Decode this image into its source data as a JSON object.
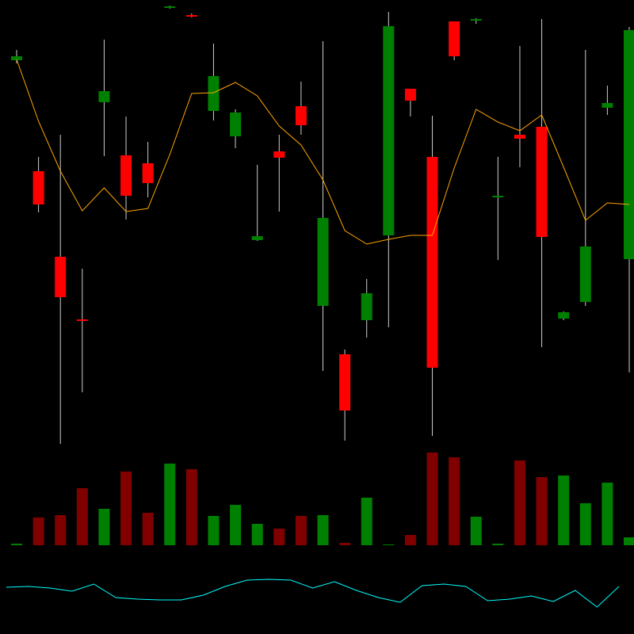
{
  "chart_data": [
    {
      "type": "candlestick",
      "open": [
        484,
        344,
        236,
        157,
        431,
        364,
        354,
        550,
        541,
        420,
        388,
        257,
        369,
        426,
        174,
        113,
        156,
        263,
        448,
        362,
        533,
        534,
        311,
        390,
        400,
        158,
        179,
        424,
        233
      ],
      "close": [
        489,
        302,
        185,
        155,
        445,
        313,
        329,
        552,
        539,
        464,
        418,
        262,
        361,
        402,
        285,
        42,
        190,
        527,
        433,
        96,
        489,
        536,
        313,
        385,
        261,
        166,
        249,
        430,
        522
      ],
      "high": [
        497,
        362,
        390,
        221,
        510,
        413,
        381,
        553,
        543,
        505,
        422,
        352,
        390,
        457,
        508,
        119,
        208,
        545,
        448,
        414,
        533,
        537,
        362,
        502,
        536,
        167,
        497,
        452,
        526
      ],
      "low": [
        480,
        292,
        0,
        65,
        363,
        283,
        311,
        549,
        538,
        408,
        373,
        256,
        293,
        390,
        92,
        4,
        134,
        147,
        413,
        10,
        484,
        530,
        232,
        349,
        122,
        156,
        174,
        415,
        90
      ],
      "up_color": "#008000",
      "down_color": "#ff0000",
      "wick_color": "#cccccc",
      "ma": [
        485,
        407,
        344,
        294,
        323,
        293,
        297,
        365,
        442,
        443,
        456,
        439,
        401,
        377,
        333,
        269,
        252,
        258,
        263,
        263,
        348,
        422,
        406,
        395,
        415,
        349,
        282,
        304,
        302
      ],
      "ma_color": "#ffa500",
      "ylim": [
        0,
        560
      ]
    },
    {
      "type": "bar",
      "values": [
        2,
        35,
        38,
        72,
        46,
        93,
        41,
        103,
        96,
        37,
        51,
        27,
        21,
        37,
        38,
        3,
        60,
        1,
        13,
        117,
        111,
        36,
        2,
        107,
        86,
        88,
        53,
        79,
        10
      ],
      "up_color": "#008000",
      "down_color": "#800000",
      "ylim": [
        0,
        120
      ]
    },
    {
      "type": "line",
      "values": [
        59,
        60,
        58,
        54,
        63,
        46,
        44,
        43,
        43,
        49,
        60,
        68,
        69,
        68,
        58,
        66,
        55,
        46,
        40,
        61,
        63,
        60,
        42,
        44,
        48,
        41,
        55,
        34,
        60
      ],
      "color": "#00ffff",
      "ylim": [
        0,
        100
      ]
    }
  ]
}
